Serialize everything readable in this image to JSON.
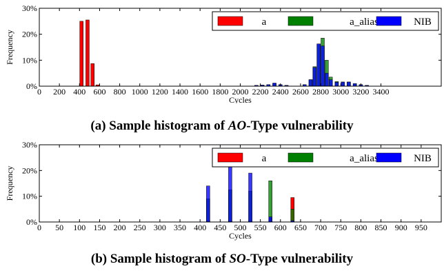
{
  "chart_data": [
    {
      "type": "bar",
      "xlabel": "Cycles",
      "ylabel": "Frequency",
      "xlim": [
        0,
        4000
      ],
      "ylim": [
        0,
        30
      ],
      "xticks": [
        0,
        200,
        400,
        600,
        800,
        1000,
        1200,
        1400,
        1600,
        1800,
        2000,
        2200,
        2400,
        2600,
        2800,
        3000,
        3200,
        3400
      ],
      "yticks": [
        0,
        10,
        20,
        30
      ],
      "ytick_suffix": "%",
      "bin_width": 40,
      "legend_position": "top-right",
      "series": [
        {
          "name": "a",
          "color": "#ff0000",
          "points": [
            [
              420,
              25
            ],
            [
              480,
              25.5
            ],
            [
              530,
              8.7
            ],
            [
              580,
              0.5
            ]
          ]
        },
        {
          "name": "a_alias",
          "color": "#008000",
          "points": [
            [
              2160,
              0.3
            ],
            [
              2220,
              0.4
            ],
            [
              2280,
              0.6
            ],
            [
              2340,
              1.0
            ],
            [
              2400,
              0.6
            ],
            [
              2460,
              0.3
            ],
            [
              2640,
              0.6
            ],
            [
              2700,
              2.5
            ],
            [
              2740,
              7.5
            ],
            [
              2780,
              16
            ],
            [
              2820,
              18.5
            ],
            [
              2860,
              10
            ],
            [
              2900,
              3.5
            ],
            [
              2960,
              1.8
            ],
            [
              3020,
              1.6
            ],
            [
              3080,
              1.6
            ],
            [
              3140,
              1.0
            ],
            [
              3200,
              0.6
            ],
            [
              3260,
              0.3
            ]
          ]
        },
        {
          "name": "NIB",
          "color": "#0000ff",
          "points": [
            [
              2160,
              0.3
            ],
            [
              2220,
              0.4
            ],
            [
              2280,
              0.6
            ],
            [
              2340,
              1.2
            ],
            [
              2400,
              0.6
            ],
            [
              2460,
              0.3
            ],
            [
              2640,
              0.6
            ],
            [
              2700,
              2.5
            ],
            [
              2740,
              7.2
            ],
            [
              2780,
              16.3
            ],
            [
              2820,
              15.5
            ],
            [
              2860,
              5
            ],
            [
              2900,
              2.5
            ],
            [
              2960,
              1.5
            ],
            [
              3020,
              1.6
            ],
            [
              3080,
              1.6
            ],
            [
              3140,
              1.0
            ],
            [
              3200,
              0.6
            ],
            [
              3260,
              0.3
            ]
          ]
        }
      ]
    },
    {
      "type": "bar",
      "xlabel": "Cycles",
      "ylabel": "Frequency",
      "xlim": [
        0,
        1000
      ],
      "ylim": [
        0,
        30
      ],
      "xticks": [
        0,
        50,
        100,
        150,
        200,
        250,
        300,
        350,
        400,
        450,
        500,
        550,
        600,
        650,
        700,
        750,
        800,
        850,
        900,
        950
      ],
      "yticks": [
        0,
        10,
        20,
        30
      ],
      "ytick_suffix": "%",
      "bin_width": 10,
      "legend_position": "top-right",
      "series": [
        {
          "name": "a",
          "color": "#ff0000",
          "points": [
            [
              420,
              0.5
            ],
            [
              475,
              0.5
            ],
            [
              525,
              0.5
            ],
            [
              575,
              1.5
            ],
            [
              630,
              9.5
            ]
          ]
        },
        {
          "name": "a_alias",
          "color": "#008000",
          "points": [
            [
              420,
              9
            ],
            [
              475,
              12.5
            ],
            [
              525,
              12
            ],
            [
              575,
              16
            ],
            [
              630,
              5
            ]
          ]
        },
        {
          "name": "NIB",
          "color": "#0000ff",
          "points": [
            [
              420,
              14
            ],
            [
              475,
              25
            ],
            [
              525,
              19
            ],
            [
              575,
              2
            ],
            [
              630,
              0.5
            ]
          ]
        }
      ]
    }
  ],
  "captions": [
    {
      "prefix": "(a) Sample histogram of ",
      "term": "AO",
      "suffix": "-Type vulnerability"
    },
    {
      "prefix": "(b) Sample histogram of ",
      "term": "SO",
      "suffix": "-Type vulnerability"
    }
  ]
}
